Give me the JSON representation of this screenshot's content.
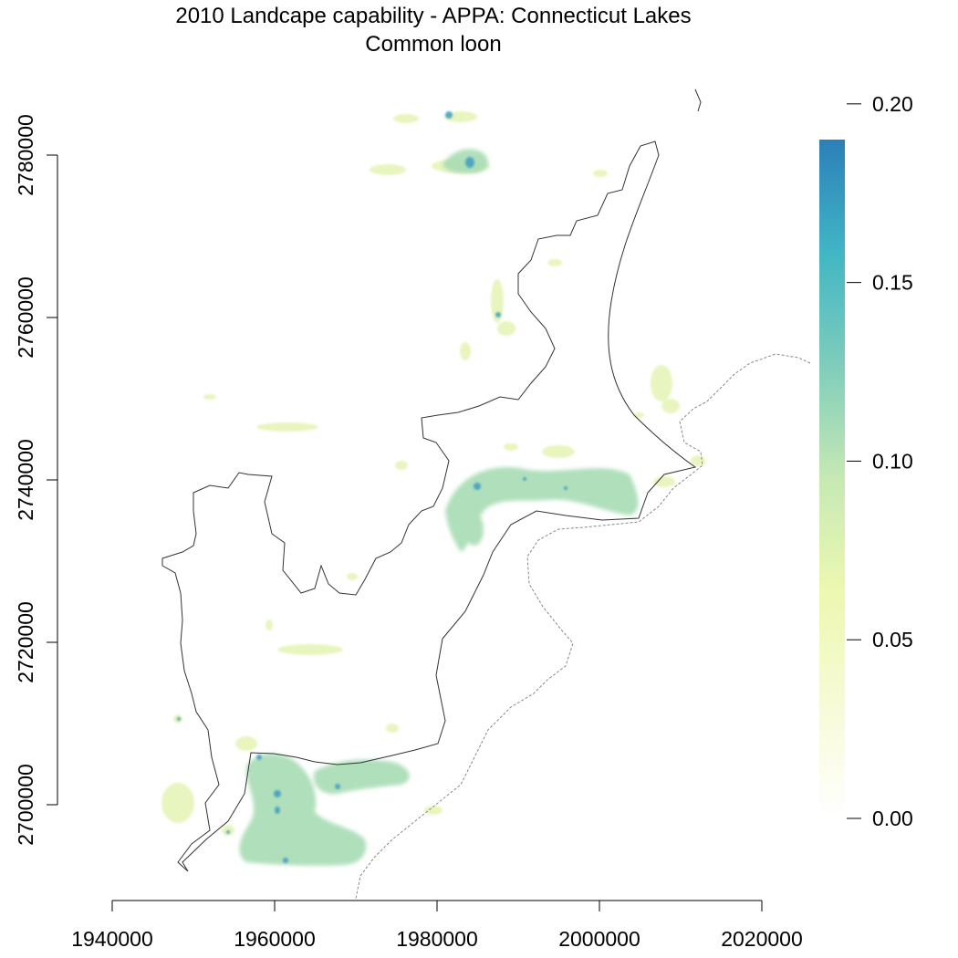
{
  "title": {
    "line1": "2010 Landcape capability - APPA: Connecticut Lakes",
    "line2": "Common loon"
  },
  "map": {
    "x_axis": {
      "ticks": [
        1940000,
        1960000,
        1980000,
        2000000,
        2020000
      ],
      "tick_labels": [
        "1940000",
        "1960000",
        "1980000",
        "2000000",
        "2020000"
      ],
      "range": [
        1940000,
        2020000
      ]
    },
    "y_axis": {
      "ticks": [
        2700000,
        2720000,
        2740000,
        2760000,
        2780000
      ],
      "tick_labels": [
        "2700000",
        "2720000",
        "2740000",
        "2760000",
        "2780000"
      ],
      "range": [
        2700000,
        2780000
      ]
    },
    "legend": {
      "placement": "right",
      "ticks": [
        0.0,
        0.05,
        0.1,
        0.15,
        0.2
      ],
      "tick_labels": [
        "0.00",
        "0.05",
        "0.10",
        "0.15",
        "0.20"
      ],
      "range": [
        0.0,
        0.19
      ],
      "colors": [
        "#ffffff",
        "#f7fbd6",
        "#edf8b1",
        "#c7e9b4",
        "#7fcdbb",
        "#41b6c4",
        "#2c7fb8"
      ]
    },
    "styles": {
      "boundary_color": "#333333",
      "state_line_color": "#888888"
    }
  }
}
